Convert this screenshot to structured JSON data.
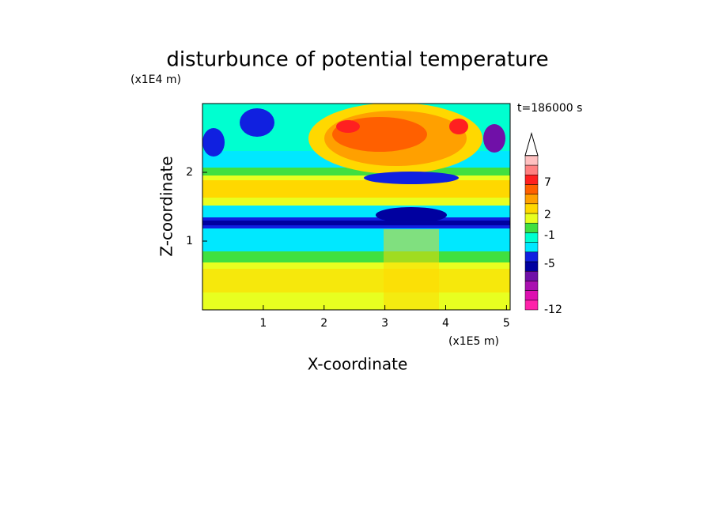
{
  "chart_data": {
    "type": "contour",
    "title": "disturbunce of potential temperature",
    "x_label": "X-coordinate",
    "y_label": "Z-coordinate",
    "x_unit": "(x1E5 m)",
    "y_unit": "(x1E4 m)",
    "time_label": "t=186000 s",
    "xlim": [
      0,
      5.06
    ],
    "ylim": [
      0,
      3
    ],
    "xticks": [
      1,
      2,
      3,
      4,
      5
    ],
    "yticks": [
      1,
      2
    ],
    "colorbar_ticks": [
      7,
      2,
      -1,
      -5,
      -12
    ],
    "colorbar_colors": [
      "#ff22aa",
      "#dd10b0",
      "#aa10b0",
      "#7010a8",
      "#0000a0",
      "#1020e0",
      "#00e8ff",
      "#00ffd0",
      "#40e040",
      "#e8ff20",
      "#ffd800",
      "#ffa000",
      "#ff6000",
      "#ff2020",
      "#ff8080",
      "#ffc0c0"
    ]
  }
}
